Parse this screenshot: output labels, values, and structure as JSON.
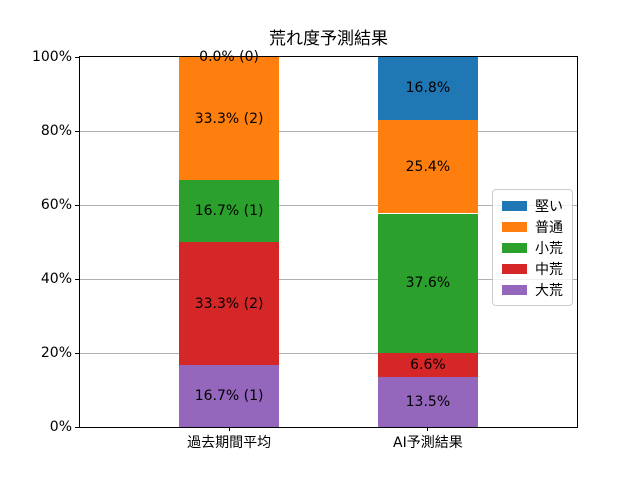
{
  "chart_data": {
    "type": "bar",
    "stacked": true,
    "title": "荒れ度予測結果",
    "categories": [
      "過去期間平均",
      "AI予測結果"
    ],
    "series": [
      {
        "name": "大荒",
        "color": "#9467bd",
        "values": [
          16.7,
          13.5
        ],
        "labels": [
          "16.7% (1)",
          "13.5%"
        ]
      },
      {
        "name": "中荒",
        "color": "#d62728",
        "values": [
          33.3,
          6.6
        ],
        "labels": [
          "33.3% (2)",
          "6.6%"
        ]
      },
      {
        "name": "小荒",
        "color": "#2ca02c",
        "values": [
          16.7,
          37.6
        ],
        "labels": [
          "16.7% (1)",
          "37.6%"
        ]
      },
      {
        "name": "普通",
        "color": "#ff7f0e",
        "values": [
          33.3,
          25.4
        ],
        "labels": [
          "33.3% (2)",
          "25.4%"
        ]
      },
      {
        "name": "堅い",
        "color": "#1f77b4",
        "values": [
          0.0,
          16.8
        ],
        "labels": [
          "0.0% (0)",
          "16.8%"
        ]
      }
    ],
    "legend": {
      "position": "center right",
      "entries": [
        "堅い",
        "普通",
        "小荒",
        "中荒",
        "大荒"
      ]
    },
    "ylim": [
      0,
      100
    ],
    "yticks": [
      "0%",
      "20%",
      "40%",
      "60%",
      "80%",
      "100%"
    ],
    "ytick_values": [
      0,
      20,
      40,
      60,
      80,
      100
    ],
    "grid": true,
    "grid_color": "#b0b0b0",
    "axis_color": "#000000",
    "background": "#ffffff"
  }
}
